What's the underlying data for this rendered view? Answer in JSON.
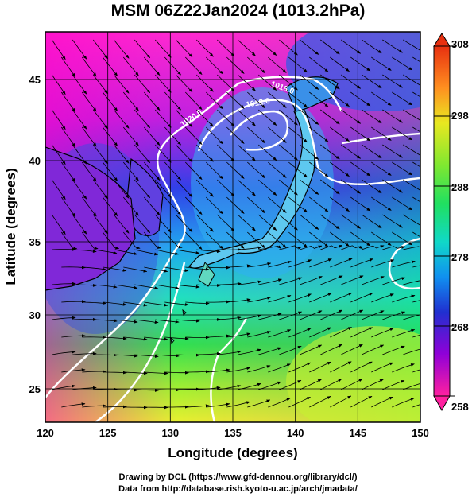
{
  "title": "MSM 06Z22Jan2024 (1013.2hPa)",
  "axes": {
    "xlabel": "Longitude (degrees)",
    "ylabel": "Latitude  (degrees)",
    "xlim": [
      120,
      150
    ],
    "ylim": [
      22.5,
      48
    ],
    "xticks": [
      "120",
      "125",
      "130",
      "135",
      "140",
      "145",
      "150"
    ],
    "yticks": [
      "25",
      "30",
      "35",
      "40",
      "45"
    ]
  },
  "colorbar": {
    "min": 258,
    "max": 308,
    "labels": [
      "308",
      "298",
      "288",
      "278",
      "268",
      "258"
    ],
    "colors": [
      "#ff2a8a",
      "#cc00cc",
      "#8a00e0",
      "#2b2bd8",
      "#1f7ae8",
      "#00d0e8",
      "#10e890",
      "#30e040",
      "#a0e830",
      "#e8e820",
      "#ffc020",
      "#ff7020",
      "#f02020"
    ]
  },
  "contour_labels": [
    "1020.0",
    "1016.0",
    "1012.0"
  ],
  "credits": {
    "line1": "Drawing by DCL (https://www.gfd-dennou.org/library/dcl/)",
    "line2": "Data from http://database.rish.kyoto-u.ac.jp/arch/jmadata/"
  }
}
